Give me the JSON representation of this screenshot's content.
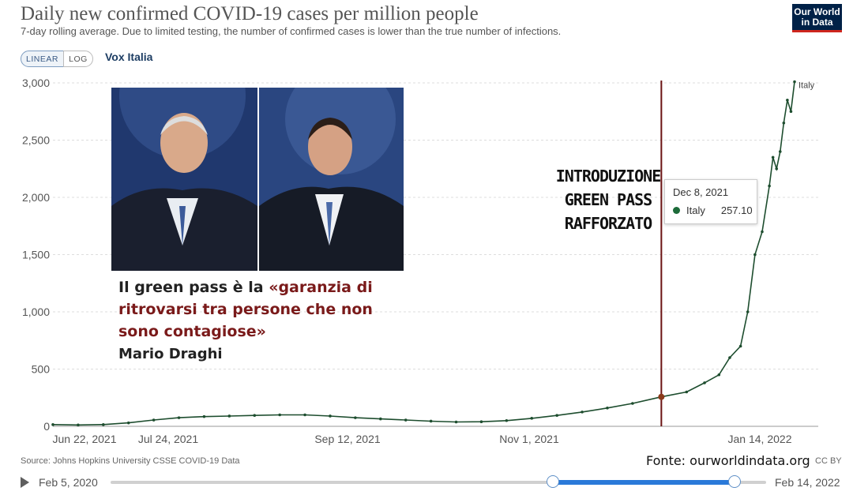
{
  "header": {
    "title": "Daily new confirmed COVID-19 cases per million people",
    "subtitle": "7-day rolling average. Due to limited testing, the number of confirmed cases is lower than the true number of infections.",
    "logo_line1": "Our World",
    "logo_line2": "in Data"
  },
  "controls": {
    "linear_label": "LINEAR",
    "log_label": "LOG",
    "entity_label": "Vox Italia"
  },
  "overlay": {
    "quote_plain": "Il green pass è la ",
    "quote_red": "«garanzia di ritrovarsi tra persone che non sono contagiose»",
    "quote_author": "Mario Draghi",
    "annotation_line1": "INTRODUZIONE",
    "annotation_line2": "GREEN PASS",
    "annotation_line3": "RAFFORZATO"
  },
  "tooltip": {
    "date": "Dec 8, 2021",
    "series": "Italy",
    "value": "257.10"
  },
  "footer": {
    "source": "Source: Johns Hopkins University CSSE COVID-19 Data",
    "fonte": "Fonte: ourworldindata.org",
    "license": "CC BY",
    "timeline_start": "Feb 5, 2020",
    "timeline_end": "Feb 14, 2022"
  },
  "colors": {
    "series": "#1d4d2e",
    "marker": "#6b1414",
    "accent": "#2a7ad9",
    "logo_bg": "#002147",
    "logo_red": "#ce261e"
  },
  "chart_data": {
    "type": "line",
    "title": "Daily new confirmed COVID-19 cases per million people",
    "ylim": [
      0,
      3000
    ],
    "y_ticks": [
      "0",
      "500",
      "1,000",
      "1,500",
      "2,000",
      "2,500",
      "3,000"
    ],
    "x_tick_labels": [
      "Jun 22, 2021",
      "Jul 24, 2021",
      "Sep 12, 2021",
      "Nov 1, 2021",
      "Jan 14, 2022"
    ],
    "x_range": [
      "2021-06-22",
      "2022-01-14"
    ],
    "grid": true,
    "series": [
      {
        "name": "Italy",
        "points": [
          [
            "2021-06-22",
            15
          ],
          [
            "2021-06-29",
            12
          ],
          [
            "2021-07-06",
            15
          ],
          [
            "2021-07-13",
            30
          ],
          [
            "2021-07-20",
            55
          ],
          [
            "2021-07-27",
            75
          ],
          [
            "2021-08-03",
            85
          ],
          [
            "2021-08-10",
            90
          ],
          [
            "2021-08-17",
            95
          ],
          [
            "2021-08-24",
            100
          ],
          [
            "2021-08-31",
            100
          ],
          [
            "2021-09-07",
            90
          ],
          [
            "2021-09-14",
            75
          ],
          [
            "2021-09-21",
            65
          ],
          [
            "2021-09-28",
            55
          ],
          [
            "2021-10-05",
            45
          ],
          [
            "2021-10-12",
            38
          ],
          [
            "2021-10-19",
            40
          ],
          [
            "2021-10-26",
            50
          ],
          [
            "2021-11-02",
            70
          ],
          [
            "2021-11-09",
            95
          ],
          [
            "2021-11-16",
            125
          ],
          [
            "2021-11-23",
            160
          ],
          [
            "2021-11-30",
            200
          ],
          [
            "2021-12-08",
            257.1
          ],
          [
            "2021-12-15",
            300
          ],
          [
            "2021-12-20",
            380
          ],
          [
            "2021-12-24",
            450
          ],
          [
            "2021-12-27",
            600
          ],
          [
            "2021-12-30",
            700
          ],
          [
            "2022-01-01",
            1000
          ],
          [
            "2022-01-03",
            1500
          ],
          [
            "2022-01-05",
            1700
          ],
          [
            "2022-01-07",
            2100
          ],
          [
            "2022-01-08",
            2350
          ],
          [
            "2022-01-09",
            2250
          ],
          [
            "2022-01-10",
            2400
          ],
          [
            "2022-01-11",
            2650
          ],
          [
            "2022-01-12",
            2850
          ],
          [
            "2022-01-13",
            2750
          ],
          [
            "2022-01-14",
            3010
          ]
        ]
      }
    ],
    "annotation": {
      "date": "2021-12-08",
      "value": 257.1
    }
  }
}
